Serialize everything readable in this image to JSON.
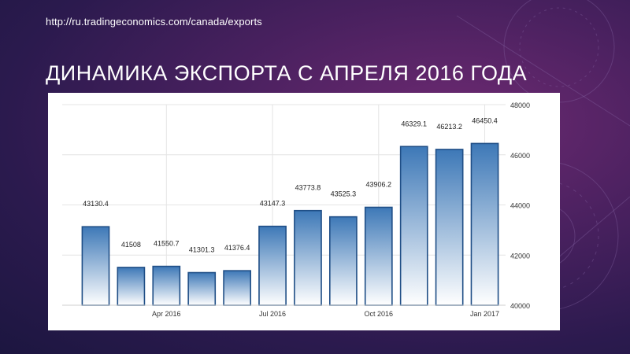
{
  "source_url": "http://ru.tradingeconomics.com/canada/exports",
  "slide_title": "ДИНАМИКА ЭКСПОРТА С АПРЕЛЯ 2016 ГОДА",
  "chart_data": {
    "type": "bar",
    "title": "",
    "xlabel": "",
    "ylabel": "",
    "ylim": [
      40000,
      48000
    ],
    "yticks": [
      40000,
      42000,
      44000,
      46000,
      48000
    ],
    "grid": true,
    "x_tick_labels": [
      {
        "label": "Apr 2016",
        "index": 2
      },
      {
        "label": "Jul 2016",
        "index": 5
      },
      {
        "label": "Oct 2016",
        "index": 8
      },
      {
        "label": "Jan 2017",
        "index": 11
      }
    ],
    "values": [
      43130.4,
      41508,
      41550.7,
      41301.3,
      41376.4,
      43147.3,
      43773.8,
      43525.3,
      43906.2,
      46329.1,
      46213.2,
      46450.4
    ],
    "data_labels": [
      "43130.4",
      "41508",
      "41550.7",
      "41301.3",
      "41376.4",
      "43147.3",
      "43773.8",
      "43525.3",
      "43906.2",
      "46329.1",
      "46213.2",
      "46450.4"
    ],
    "bar_color_top": "#3d78b7",
    "bar_color_bottom": "#ffffff"
  }
}
